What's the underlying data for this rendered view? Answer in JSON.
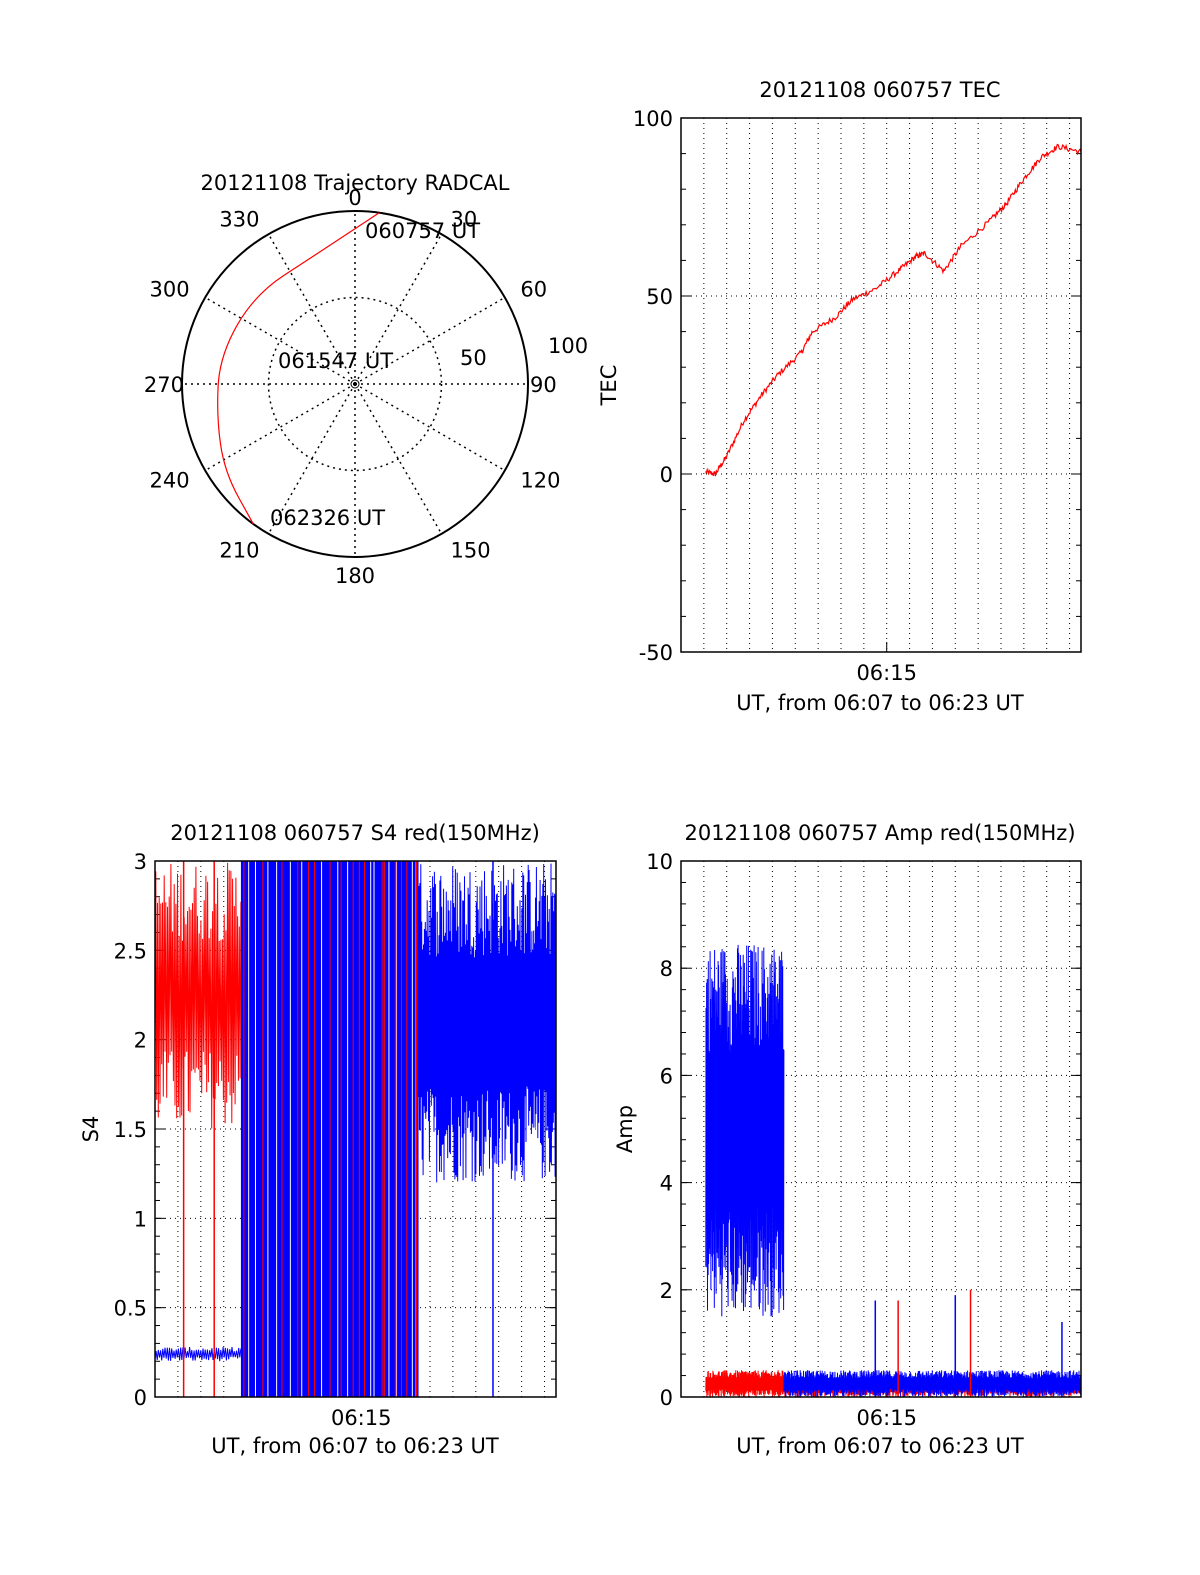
{
  "colors": {
    "red": "#ff0000",
    "blue": "#0000ff",
    "axis": "#000000",
    "grid": "#000000"
  },
  "chart_data": [
    {
      "id": "trajectory",
      "type": "polar",
      "title": "20121108 Trajectory RADCAL",
      "azimuth_labels": [
        "0",
        "30",
        "60",
        "90",
        "120",
        "150",
        "180",
        "210",
        "240",
        "270",
        "300",
        "330"
      ],
      "radial_ticks": [
        "50",
        "100"
      ],
      "grid": true,
      "trajectory_color": "#ff0000",
      "trajectory": [
        {
          "azimuth_deg": 8,
          "zenith_deg": 90
        },
        {
          "azimuth_deg": -18,
          "zenith_deg": 70
        },
        {
          "azimuth_deg": -48,
          "zenith_deg": 70
        },
        {
          "azimuth_deg": -78,
          "zenith_deg": 72
        },
        {
          "azimuth_deg": -103,
          "zenith_deg": 74
        },
        {
          "azimuth_deg": -124,
          "zenith_deg": 82
        },
        {
          "azimuth_deg": -144,
          "zenith_deg": 92
        }
      ],
      "annotations": [
        "060757 UT",
        "061547 UT",
        "062326 UT"
      ]
    },
    {
      "id": "tec",
      "type": "line",
      "title": "20121108 060757 TEC",
      "xlabel": "UT, from 06:07 to 06:23 UT",
      "ylabel": "TEC",
      "x_tick_labels": [
        "06:15"
      ],
      "x_range": [
        "06:06:00",
        "06:23:30"
      ],
      "ylim": [
        -50,
        100
      ],
      "y_ticks": [
        "-50",
        "0",
        "50",
        "100"
      ],
      "grid": true,
      "series": [
        {
          "color": "#ff0000",
          "points": [
            {
              "t": "06:07:05",
              "y": 0.5
            },
            {
              "t": "06:07:30",
              "y": 0
            },
            {
              "t": "06:08:00",
              "y": 5
            },
            {
              "t": "06:08:45",
              "y": 15
            },
            {
              "t": "06:09:30",
              "y": 22
            },
            {
              "t": "06:10:15",
              "y": 28
            },
            {
              "t": "06:11:15",
              "y": 34
            },
            {
              "t": "06:11:45",
              "y": 40
            },
            {
              "t": "06:12:45",
              "y": 44
            },
            {
              "t": "06:13:30",
              "y": 49
            },
            {
              "t": "06:14:30",
              "y": 52
            },
            {
              "t": "06:15:30",
              "y": 57
            },
            {
              "t": "06:16:15",
              "y": 61
            },
            {
              "t": "06:16:40",
              "y": 62
            },
            {
              "t": "06:17:30",
              "y": 57
            },
            {
              "t": "06:18:15",
              "y": 64
            },
            {
              "t": "06:19:30",
              "y": 71
            },
            {
              "t": "06:20:15",
              "y": 76
            },
            {
              "t": "06:21:00",
              "y": 83
            },
            {
              "t": "06:21:45",
              "y": 89
            },
            {
              "t": "06:22:30",
              "y": 92
            },
            {
              "t": "06:23:30",
              "y": 90.5
            }
          ]
        }
      ]
    },
    {
      "id": "s4",
      "type": "line",
      "title": "20121108 060757 S4 red(150MHz)",
      "xlabel": "UT, from 06:07 to 06:23 UT",
      "ylabel": "S4",
      "x_tick_labels": [
        "06:15"
      ],
      "x_range": [
        "06:06:00",
        "06:23:30"
      ],
      "ylim": [
        0,
        3
      ],
      "y_ticks": [
        "0",
        "0.5",
        "1",
        "1.5",
        "2",
        "2.5",
        "3"
      ],
      "grid": true,
      "series": [
        {
          "color": "#ff0000",
          "segments": [
            {
              "from": "06:06:00",
              "to": "06:09:45",
              "y_min": 1.5,
              "y_max": 3.0
            },
            {
              "from": "06:09:45",
              "to": "06:17:30",
              "y_min": 0,
              "y_max": 3.0
            }
          ],
          "spikes_to_zero": [
            "06:07:15",
            "06:08:35",
            "06:16:00",
            "06:16:30",
            "06:17:25"
          ]
        },
        {
          "color": "#0000ff",
          "segments": [
            {
              "from": "06:06:00",
              "to": "06:09:45",
              "y_min": 0.2,
              "y_max": 0.28
            },
            {
              "from": "06:09:45",
              "to": "06:17:30",
              "y_min": 0,
              "y_max": 3.0
            },
            {
              "from": "06:17:30",
              "to": "06:23:30",
              "y_min": 1.2,
              "y_max": 3.0
            }
          ],
          "spikes_to_zero": [
            "06:20:45"
          ]
        }
      ]
    },
    {
      "id": "amp",
      "type": "line",
      "title": "20121108 060757 Amp red(150MHz)",
      "xlabel": "UT, from 06:07 to 06:23 UT",
      "ylabel": "Amp",
      "x_tick_labels": [
        "06:15"
      ],
      "x_range": [
        "06:06:00",
        "06:23:30"
      ],
      "ylim": [
        0,
        10
      ],
      "y_ticks": [
        "0",
        "2",
        "4",
        "6",
        "8",
        "10"
      ],
      "grid": true,
      "series": [
        {
          "color": "#0000ff",
          "segments": [
            {
              "from": "06:07:05",
              "to": "06:10:30",
              "y_min": 1.5,
              "y_max": 8.5
            },
            {
              "from": "06:10:30",
              "to": "06:23:30",
              "y_min": 0,
              "y_max": 0.5
            }
          ],
          "spikes": [
            {
              "t": "06:14:30",
              "y": 1.8
            },
            {
              "t": "06:18:00",
              "y": 1.9
            },
            {
              "t": "06:22:40",
              "y": 1.4
            }
          ]
        },
        {
          "color": "#ff0000",
          "segments": [
            {
              "from": "06:07:05",
              "to": "06:10:30",
              "y_min": 0,
              "y_max": 0.5
            },
            {
              "from": "06:10:30",
              "to": "06:23:30",
              "y_min": 0,
              "y_max": 0.35
            }
          ],
          "spikes": [
            {
              "t": "06:15:30",
              "y": 1.8
            },
            {
              "t": "06:18:40",
              "y": 2.0
            }
          ]
        }
      ]
    }
  ]
}
